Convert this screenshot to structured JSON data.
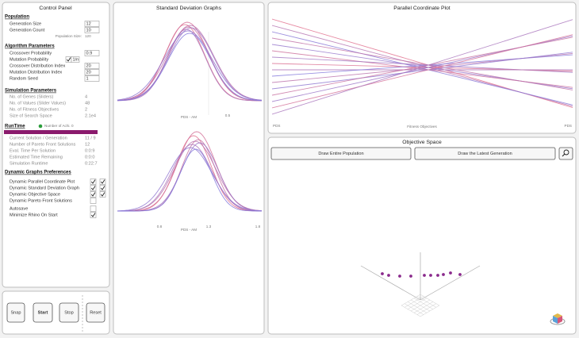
{
  "control_panel": {
    "title": "Control Panel",
    "population": {
      "heading": "Population",
      "rows": [
        {
          "label": "Generation Size",
          "value": "12"
        },
        {
          "label": "Generation Count",
          "value": "10"
        }
      ],
      "summary": {
        "label": "Population Size:",
        "value": "120"
      }
    },
    "algorithm_parameters": {
      "heading": "Algorithm Parameters",
      "rows": [
        {
          "label": "Crossover Probability",
          "value": "0.9"
        },
        {
          "label": "Mutation Probability",
          "checked": true,
          "value": "1/n"
        },
        {
          "label": "Crossover Distribution Index",
          "value": "20"
        },
        {
          "label": "Mutation Distribution Index",
          "value": "20"
        },
        {
          "label": "Random Seed",
          "value": "1"
        }
      ]
    },
    "simulation_parameters": {
      "heading": "Simulation Parameters",
      "rows": [
        {
          "label": "No. of Genes (Sliders)",
          "value": "4"
        },
        {
          "label": "No. of Values (Slider Values)",
          "value": "48"
        },
        {
          "label": "No. of Fitness Objectives",
          "value": "2"
        },
        {
          "label": "Size of Search Space",
          "value": "2.1e4"
        }
      ]
    },
    "runtime": {
      "heading": "RunTime",
      "indicator": "Number of Achi. 0",
      "rows": [
        {
          "label": "Current Solution / Generation",
          "value": "11 / 9"
        },
        {
          "label": "Number of Pareto Front Solutions",
          "value": "12"
        },
        {
          "label": "Eval. Time Per Solution",
          "value": "0:0:9"
        },
        {
          "label": "Estimated Time Remaining",
          "value": "0:0:0"
        },
        {
          "label": "Simulation Runtime",
          "value": "0:22:7"
        }
      ]
    },
    "graph_preferences": {
      "heading": "Dynamic Graphs Preferences",
      "rows": [
        {
          "label": "Dynamic Parallel Coordinate Plot",
          "checks": [
            true,
            true
          ]
        },
        {
          "label": "Dynamic Standard Deviation Graph",
          "checks": [
            true,
            true
          ]
        },
        {
          "label": "Dynamic Objective Space",
          "checks": [
            true,
            true
          ]
        },
        {
          "label": "Dynamic Pareto Front Solutions",
          "checks": [
            false
          ]
        }
      ],
      "extra_rows": [
        {
          "label": "Autosave",
          "checks": [
            false
          ]
        },
        {
          "label": "Minimize Rhino On Start",
          "checks": [
            true
          ]
        }
      ]
    }
  },
  "controls": {
    "buttons": [
      "Snap",
      "Start",
      "Stop",
      "Reset"
    ]
  },
  "std_graphs": {
    "title": "Standard Deviation Graphs",
    "top_axis": {
      "label": "PDS - AM",
      "ticks": [
        "0.5"
      ]
    },
    "bottom_axis": {
      "label": "PDS - AM",
      "ticks": [
        "0.8",
        "1.3",
        "1.8"
      ]
    }
  },
  "parallel_plot": {
    "title": "Parallel Coordinate Plot",
    "axis_title": "Fitness Objectives",
    "left_label": "PDS",
    "right_label": "PDS"
  },
  "objective_space": {
    "title": "Objective Space",
    "buttons": [
      "Draw Entire Population",
      "Draw the Latest Generation"
    ]
  }
}
